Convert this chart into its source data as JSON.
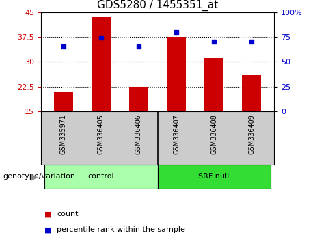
{
  "title": "GDS5280 / 1455351_at",
  "samples": [
    "GSM335971",
    "GSM336405",
    "GSM336406",
    "GSM336407",
    "GSM336408",
    "GSM336409"
  ],
  "counts": [
    21,
    43.5,
    22.5,
    37.5,
    31,
    26
  ],
  "percentile_ranks": [
    65,
    74,
    65,
    80,
    70,
    70
  ],
  "ylim_left": [
    15,
    45
  ],
  "ylim_right": [
    0,
    100
  ],
  "yticks_left": [
    15,
    22.5,
    30,
    37.5,
    45
  ],
  "yticks_right": [
    0,
    25,
    50,
    75,
    100
  ],
  "bar_color": "#cc0000",
  "dot_color": "#0000cc",
  "groups": [
    {
      "label": "control",
      "indices": [
        0,
        1,
        2
      ],
      "color": "#aaffaa"
    },
    {
      "label": "SRF null",
      "indices": [
        3,
        4,
        5
      ],
      "color": "#33dd33"
    }
  ],
  "genotype_label": "genotype/variation",
  "legend_count_label": "count",
  "legend_pct_label": "percentile rank within the sample",
  "bg_color": "#ffffff",
  "plot_bg_color": "#ffffff",
  "grid_color": "#000000",
  "sample_bg_color": "#cccccc",
  "title_fontsize": 11,
  "tick_fontsize": 8,
  "label_fontsize": 8
}
